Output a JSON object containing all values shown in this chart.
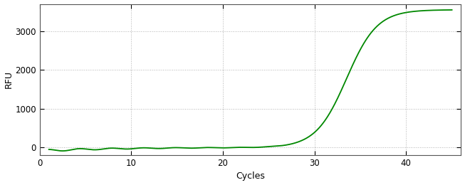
{
  "xlabel": "Cycles",
  "ylabel": "RFU",
  "line_color": "#008800",
  "line_width": 1.3,
  "background_color": "#ffffff",
  "plot_bg_color": "#ffffff",
  "grid_color": "#aaaaaa",
  "grid_style": ":",
  "xlim": [
    0,
    46
  ],
  "ylim": [
    -200,
    3700
  ],
  "xticks": [
    0,
    10,
    20,
    30,
    40
  ],
  "yticks": [
    0,
    1000,
    2000,
    3000
  ],
  "sigmoid_L": 3550,
  "sigmoid_k": 0.6,
  "sigmoid_x0": 33.5,
  "x_start": 1,
  "x_end": 45
}
